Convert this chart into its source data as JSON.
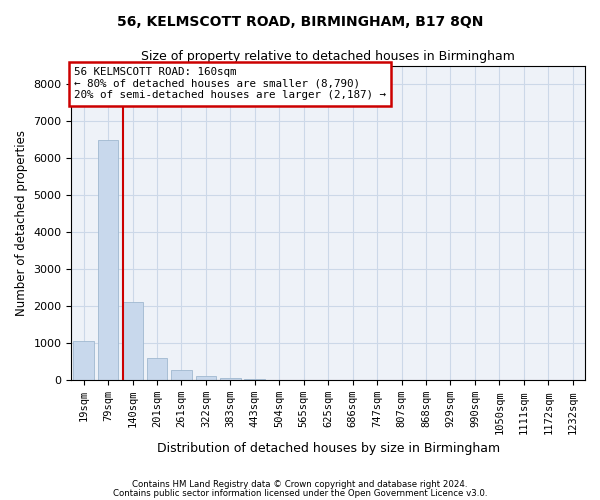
{
  "title1": "56, KELMSCOTT ROAD, BIRMINGHAM, B17 8QN",
  "title2": "Size of property relative to detached houses in Birmingham",
  "xlabel": "Distribution of detached houses by size in Birmingham",
  "ylabel": "Number of detached properties",
  "categories": [
    "19sqm",
    "79sqm",
    "140sqm",
    "201sqm",
    "261sqm",
    "322sqm",
    "383sqm",
    "443sqm",
    "504sqm",
    "565sqm",
    "625sqm",
    "686sqm",
    "747sqm",
    "807sqm",
    "868sqm",
    "929sqm",
    "990sqm",
    "1050sqm",
    "1111sqm",
    "1172sqm",
    "1232sqm"
  ],
  "values": [
    1050,
    6500,
    2100,
    600,
    270,
    120,
    70,
    30,
    10,
    0,
    0,
    0,
    0,
    0,
    0,
    0,
    0,
    0,
    0,
    0,
    0
  ],
  "bar_color": "#c8d8ec",
  "bar_edgecolor": "#a0b8d0",
  "annotation_line1": "56 KELMSCOTT ROAD: 160sqm",
  "annotation_line2": "← 80% of detached houses are smaller (8,790)",
  "annotation_line3": "20% of semi-detached houses are larger (2,187) →",
  "annotation_box_color": "#ffffff",
  "annotation_box_edgecolor": "#cc0000",
  "vline_x": 1.6,
  "vline_color": "#cc0000",
  "grid_color": "#ccd8e8",
  "background_color": "#eef2f8",
  "footer1": "Contains HM Land Registry data © Crown copyright and database right 2024.",
  "footer2": "Contains public sector information licensed under the Open Government Licence v3.0.",
  "ylim": [
    0,
    8500
  ],
  "yticks": [
    0,
    1000,
    2000,
    3000,
    4000,
    5000,
    6000,
    7000,
    8000
  ]
}
